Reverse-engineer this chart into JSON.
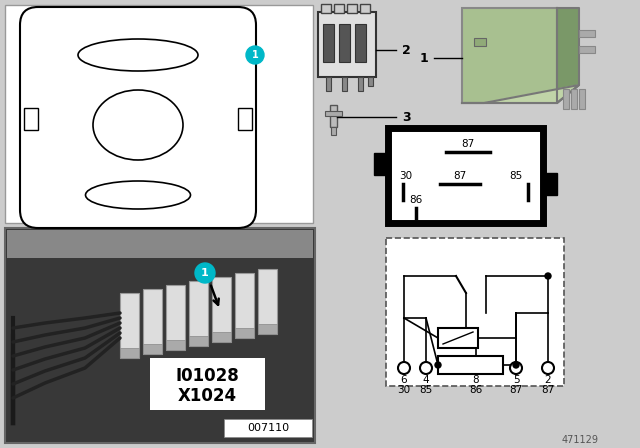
{
  "bg_color": "#cccccc",
  "white": "#ffffff",
  "black": "#000000",
  "cyan_circle": "#00b8c8",
  "green_relay": "#a8c090",
  "green_relay_dark": "#7a9868",
  "green_relay_light": "#c0d4a8",
  "gray_photo": "#484848",
  "part_number": "471129",
  "sub_number": "007110",
  "label_io": "I01028",
  "label_x": "X1024",
  "pin_top": [
    "6",
    "4",
    "8",
    "5",
    "2"
  ],
  "pin_bot": [
    "30",
    "85",
    "86",
    "87",
    "87"
  ],
  "relay_pin_labels": [
    "87",
    "30",
    "87",
    "85",
    "86"
  ]
}
